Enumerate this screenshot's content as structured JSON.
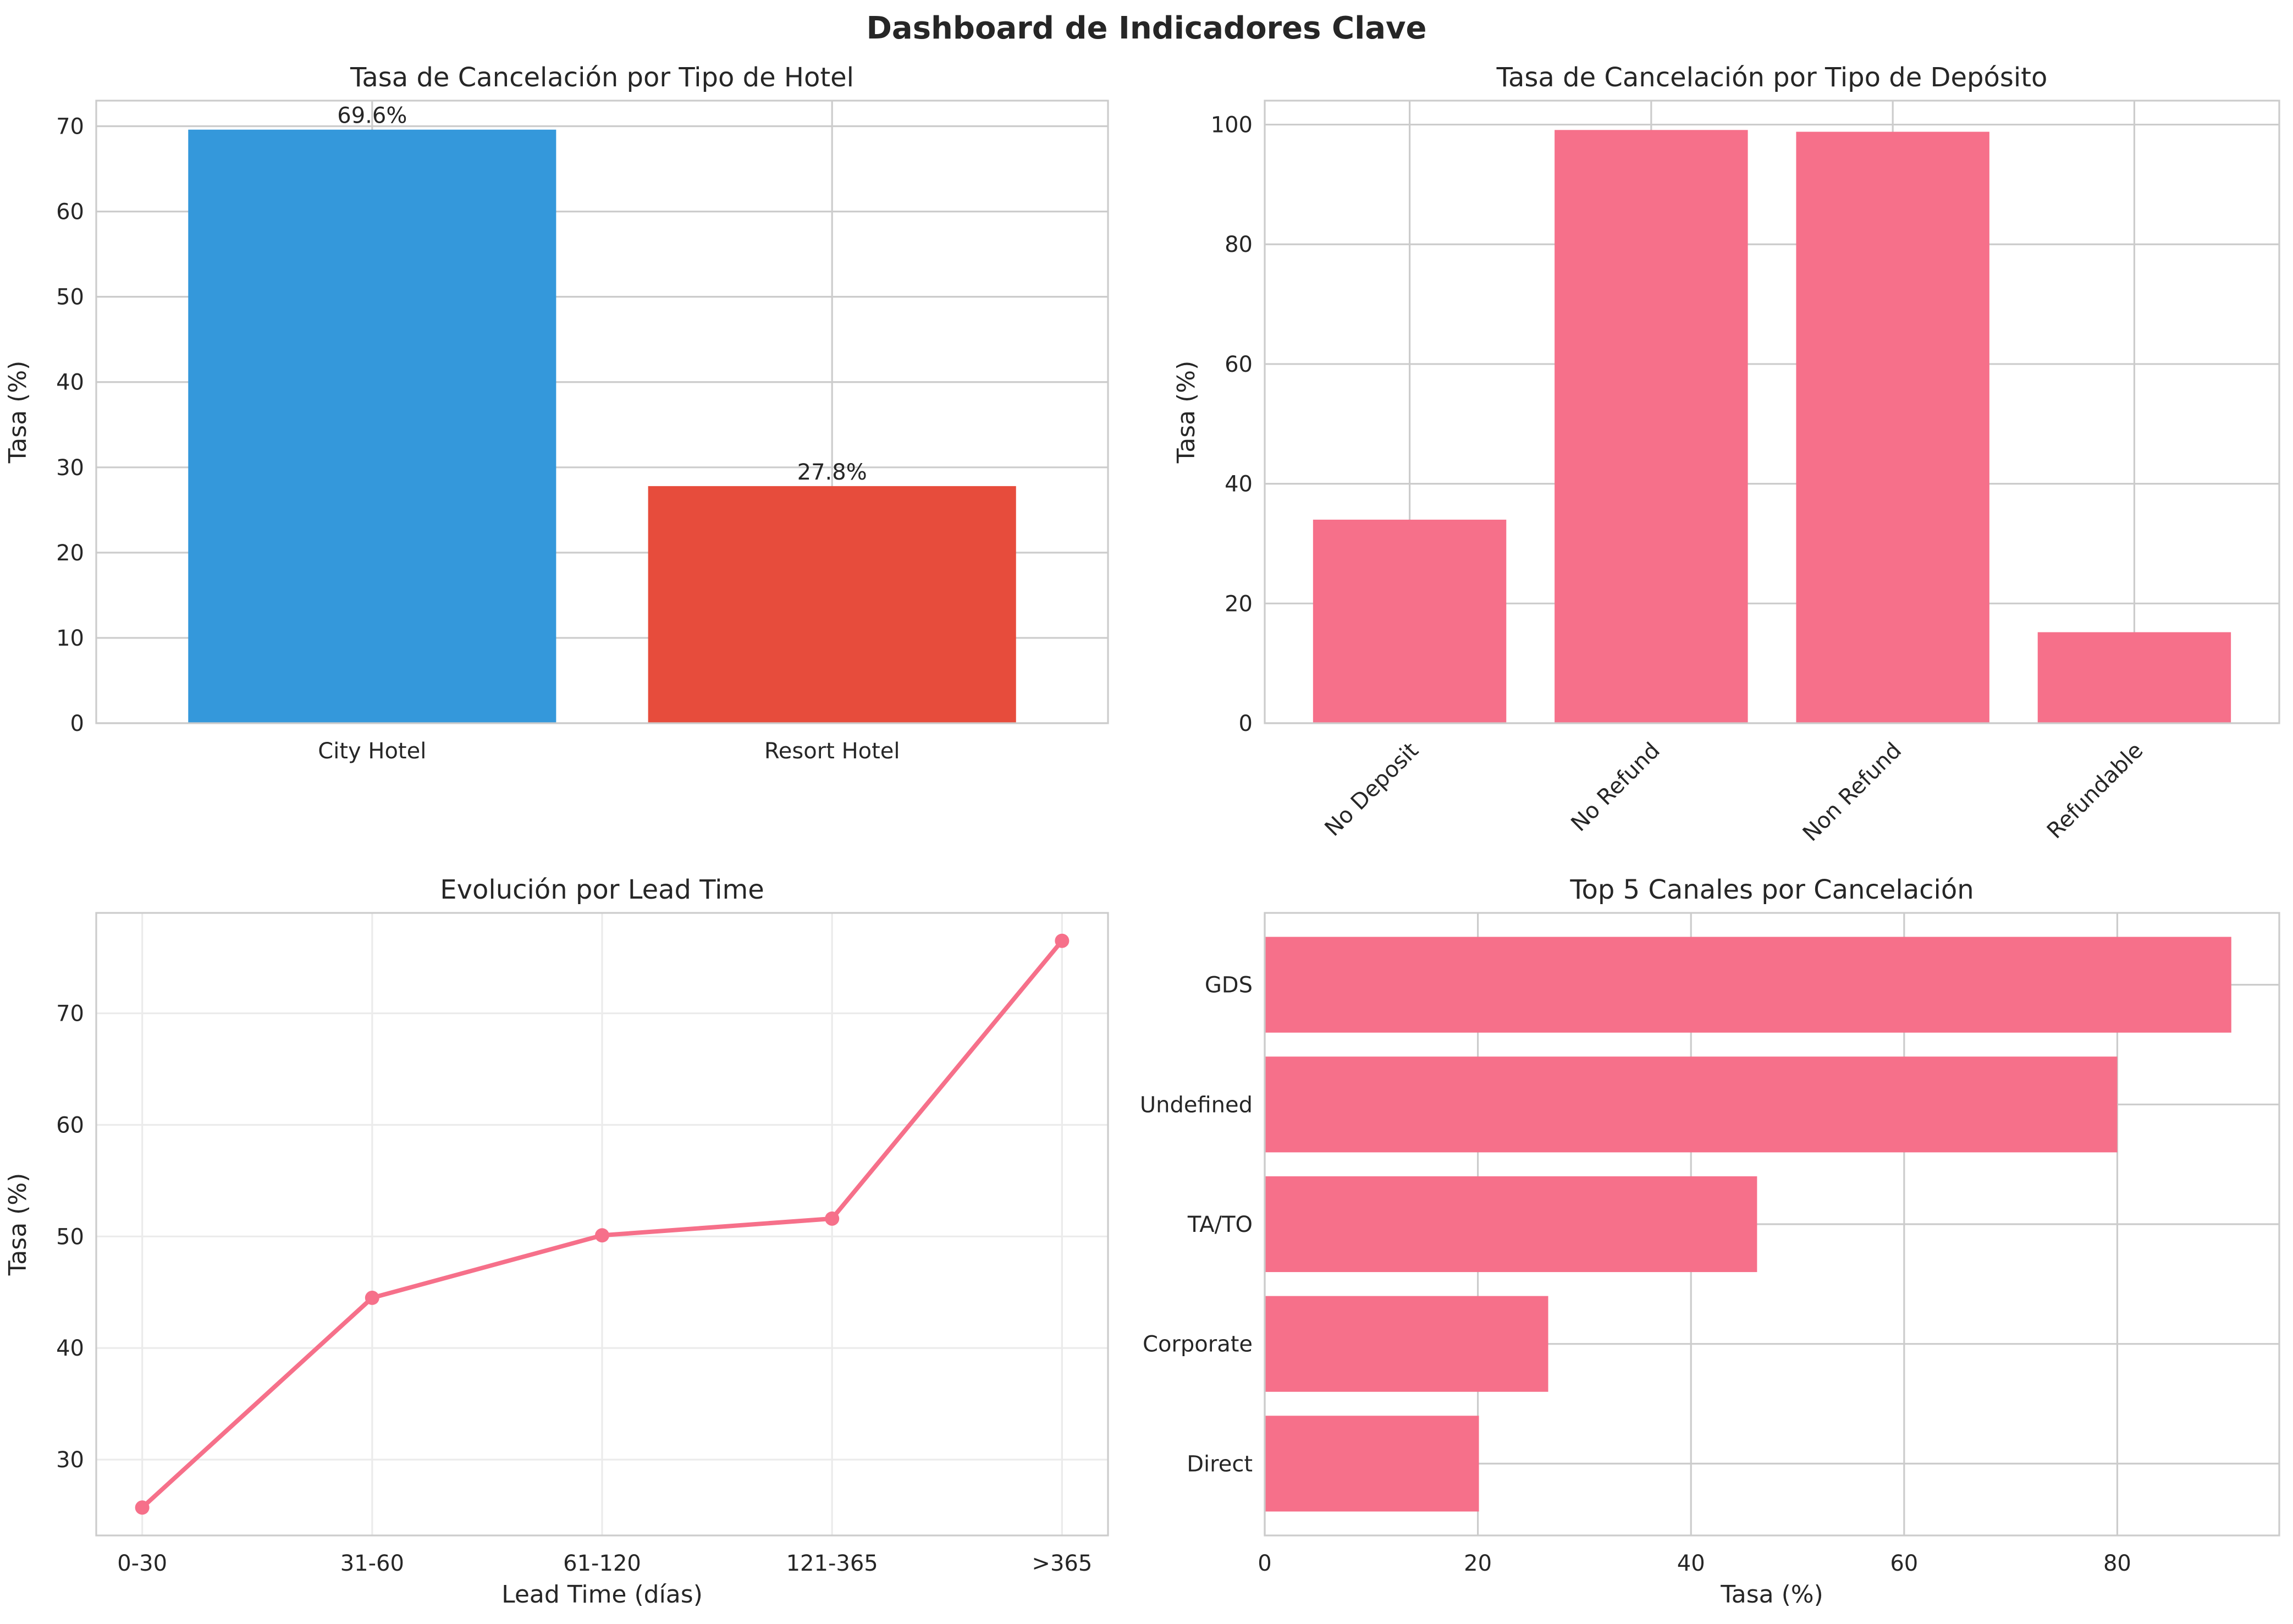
{
  "page_title": "Dashboard de Indicadores Clave",
  "colors": {
    "text": "#262626",
    "grid": "#cccccc",
    "grid_light": "#ebebeb",
    "pink": "#f6708a",
    "blue": "#3498db",
    "red": "#e74c3c"
  },
  "chart_data": [
    {
      "type": "bar",
      "title": "Tasa de Cancelación por Tipo de Hotel",
      "ylabel": "Tasa (%)",
      "xlabel": "",
      "categories": [
        "City Hotel",
        "Resort Hotel"
      ],
      "values": [
        69.6,
        27.8
      ],
      "data_labels": [
        "69.6%",
        "27.8%"
      ],
      "bar_colors": [
        "#3498db",
        "#e74c3c"
      ],
      "ylim": [
        0,
        73
      ],
      "yticks": [
        0,
        10,
        20,
        30,
        40,
        50,
        60,
        70
      ],
      "grid": true
    },
    {
      "type": "bar",
      "title": "Tasa de Cancelación por Tipo de Depósito",
      "ylabel": "Tasa (%)",
      "xlabel": "",
      "categories": [
        "No Deposit",
        "No Refund",
        "Non Refund",
        "Refundable"
      ],
      "values": [
        34.0,
        99.1,
        98.8,
        15.2
      ],
      "bar_color": "#f6708a",
      "ylim": [
        0,
        104
      ],
      "yticks": [
        0,
        20,
        40,
        60,
        80,
        100
      ],
      "grid": true
    },
    {
      "type": "line",
      "title": "Evolución por Lead Time",
      "ylabel": "Tasa (%)",
      "xlabel": "Lead Time (días)",
      "categories": [
        "0-30",
        "31-60",
        "61-120",
        "121-365",
        ">365"
      ],
      "values": [
        25.7,
        44.5,
        50.1,
        51.6,
        76.5
      ],
      "line_color": "#f6708a",
      "ylim": [
        23.2,
        79
      ],
      "yticks": [
        30,
        40,
        50,
        60,
        70
      ],
      "grid": true
    },
    {
      "type": "bar",
      "orientation": "horizontal",
      "title": "Top 5 Canales por Cancelación",
      "ylabel": "",
      "xlabel": "Tasa (%)",
      "categories": [
        "GDS",
        "Undefined",
        "TA/TO",
        "Corporate",
        "Direct"
      ],
      "values": [
        90.7,
        80.0,
        46.2,
        26.6,
        20.1
      ],
      "bar_color": "#f6708a",
      "xlim": [
        0,
        95.2
      ],
      "xticks": [
        0,
        20,
        40,
        60,
        80
      ],
      "grid": true
    }
  ]
}
